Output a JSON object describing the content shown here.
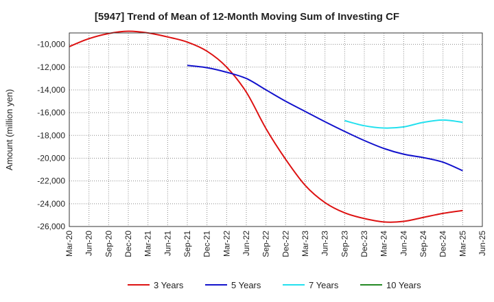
{
  "chart_data": {
    "type": "line",
    "title": "[5947]  Trend of Mean of 12-Month Moving Sum of Investing CF",
    "xlabel": "",
    "ylabel": "Amount (million yen)",
    "ylim": [
      -26000,
      -9000
    ],
    "yticks": [
      -10000,
      -12000,
      -14000,
      -16000,
      -18000,
      -20000,
      -22000,
      -24000,
      -26000
    ],
    "ytick_labels": [
      "-10,000",
      "-12,000",
      "-14,000",
      "-16,000",
      "-18,000",
      "-20,000",
      "-22,000",
      "-24,000",
      "-26,000"
    ],
    "x_start": "2020-03",
    "x_end": "2025-06",
    "xtick_labels": [
      "Mar-20",
      "Jun-20",
      "Sep-20",
      "Dec-20",
      "Mar-21",
      "Jun-21",
      "Sep-21",
      "Dec-21",
      "Mar-22",
      "Jun-22",
      "Sep-22",
      "Dec-22",
      "Mar-23",
      "Jun-23",
      "Sep-23",
      "Dec-23",
      "Mar-24",
      "Jun-24",
      "Sep-24",
      "Dec-24",
      "Mar-25",
      "Jun-25"
    ],
    "grid": true,
    "legend_position": "bottom",
    "series": [
      {
        "name": "3 Years",
        "color": "#dd1111",
        "points": [
          [
            "2020-03",
            -10200
          ],
          [
            "2020-06",
            -9500
          ],
          [
            "2020-09",
            -9050
          ],
          [
            "2020-12",
            -8850
          ],
          [
            "2021-03",
            -9000
          ],
          [
            "2021-06",
            -9350
          ],
          [
            "2021-09",
            -9800
          ],
          [
            "2021-12",
            -10600
          ],
          [
            "2022-03",
            -12000
          ],
          [
            "2022-06",
            -14200
          ],
          [
            "2022-09",
            -17400
          ],
          [
            "2022-12",
            -20100
          ],
          [
            "2023-03",
            -22400
          ],
          [
            "2023-06",
            -23900
          ],
          [
            "2023-09",
            -24800
          ],
          [
            "2023-12",
            -25300
          ],
          [
            "2024-03",
            -25600
          ],
          [
            "2024-06",
            -25550
          ],
          [
            "2024-09",
            -25200
          ],
          [
            "2024-12",
            -24850
          ],
          [
            "2025-03",
            -24600
          ]
        ]
      },
      {
        "name": "5 Years",
        "color": "#1111cc",
        "points": [
          [
            "2021-09",
            -11850
          ],
          [
            "2021-12",
            -12050
          ],
          [
            "2022-03",
            -12450
          ],
          [
            "2022-06",
            -13000
          ],
          [
            "2022-09",
            -14000
          ],
          [
            "2022-12",
            -15000
          ],
          [
            "2023-03",
            -15900
          ],
          [
            "2023-06",
            -16800
          ],
          [
            "2023-09",
            -17650
          ],
          [
            "2023-12",
            -18450
          ],
          [
            "2024-03",
            -19150
          ],
          [
            "2024-06",
            -19650
          ],
          [
            "2024-09",
            -19950
          ],
          [
            "2024-12",
            -20350
          ],
          [
            "2025-03",
            -21100
          ]
        ]
      },
      {
        "name": "7 Years",
        "color": "#22e0ee",
        "points": [
          [
            "2023-09",
            -16700
          ],
          [
            "2023-12",
            -17150
          ],
          [
            "2024-03",
            -17350
          ],
          [
            "2024-06",
            -17250
          ],
          [
            "2024-09",
            -16850
          ],
          [
            "2024-12",
            -16650
          ],
          [
            "2025-03",
            -16850
          ]
        ]
      },
      {
        "name": "10 Years",
        "color": "#228822",
        "points": []
      }
    ]
  }
}
